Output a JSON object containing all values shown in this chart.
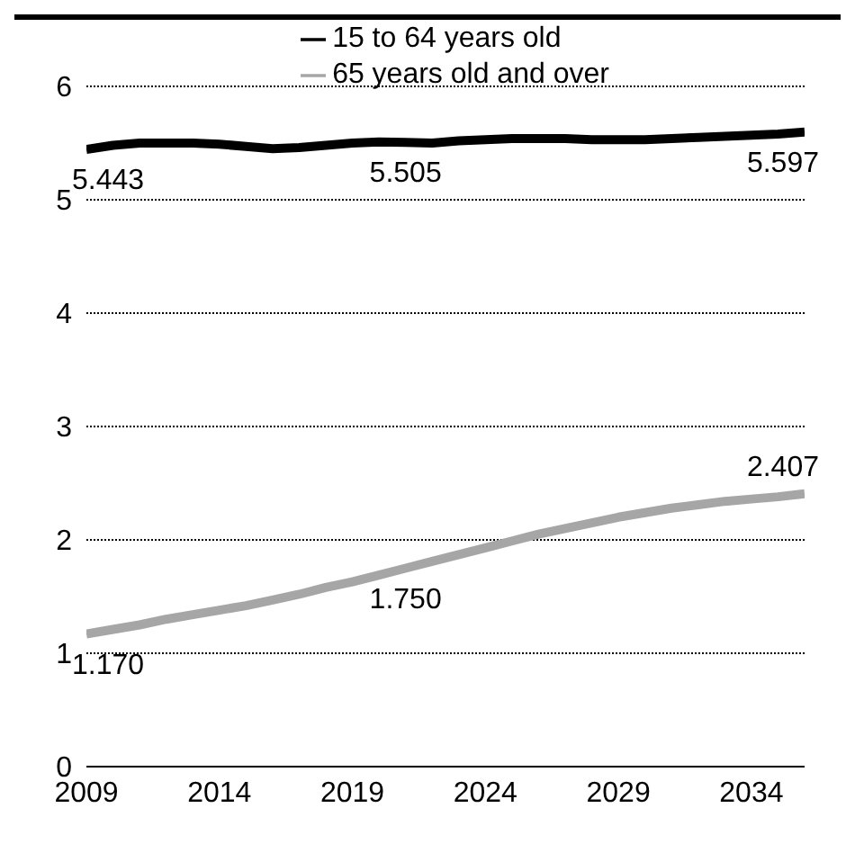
{
  "chart_data": {
    "type": "line",
    "x": [
      2009,
      2010,
      2011,
      2012,
      2013,
      2014,
      2015,
      2016,
      2017,
      2018,
      2019,
      2020,
      2021,
      2022,
      2023,
      2024,
      2025,
      2026,
      2027,
      2028,
      2029,
      2030,
      2031,
      2032,
      2033,
      2034,
      2035,
      2036
    ],
    "series": [
      {
        "name": "15 to 64 years old",
        "color": "#000000",
        "values": [
          5.443,
          5.48,
          5.5,
          5.5,
          5.5,
          5.49,
          5.47,
          5.45,
          5.46,
          5.48,
          5.5,
          5.51,
          5.505,
          5.5,
          5.52,
          5.53,
          5.54,
          5.54,
          5.54,
          5.53,
          5.53,
          5.53,
          5.54,
          5.55,
          5.56,
          5.57,
          5.58,
          5.597
        ],
        "value_labels": [
          "5.443",
          null,
          null,
          null,
          null,
          null,
          null,
          null,
          null,
          null,
          null,
          null,
          "5.505",
          null,
          null,
          null,
          null,
          null,
          null,
          null,
          null,
          null,
          null,
          null,
          null,
          null,
          null,
          "5.597"
        ]
      },
      {
        "name": "65 years old and over",
        "color": "#a6a6a6",
        "values": [
          1.17,
          1.21,
          1.25,
          1.3,
          1.34,
          1.38,
          1.42,
          1.47,
          1.52,
          1.58,
          1.63,
          1.69,
          1.75,
          1.81,
          1.87,
          1.93,
          1.99,
          2.05,
          2.1,
          2.15,
          2.2,
          2.24,
          2.28,
          2.31,
          2.34,
          2.36,
          2.38,
          2.407
        ],
        "value_labels": [
          "1.170",
          null,
          null,
          null,
          null,
          null,
          null,
          null,
          null,
          null,
          null,
          null,
          "1.750",
          null,
          null,
          null,
          null,
          null,
          null,
          null,
          null,
          null,
          null,
          null,
          null,
          null,
          null,
          "2.407"
        ]
      }
    ],
    "xlim": [
      2009,
      2036
    ],
    "xticks": [
      2009,
      2014,
      2019,
      2024,
      2029,
      2034
    ],
    "ylim": [
      0,
      6
    ],
    "yticks": [
      0,
      1,
      2,
      3,
      4,
      5,
      6
    ],
    "grid": "y",
    "legend": "top",
    "marker": "none",
    "line_style": "solid"
  }
}
